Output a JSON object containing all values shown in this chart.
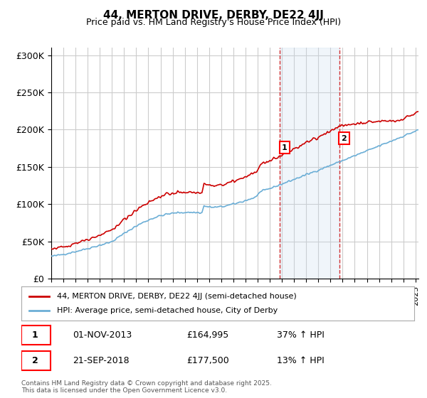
{
  "title_line1": "44, MERTON DRIVE, DERBY, DE22 4JJ",
  "title_line2": "Price paid vs. HM Land Registry's House Price Index (HPI)",
  "ylabel": "",
  "xlabel": "",
  "ylim": [
    0,
    310000
  ],
  "yticks": [
    0,
    50000,
    100000,
    150000,
    200000,
    250000,
    300000
  ],
  "ytick_labels": [
    "£0",
    "£50K",
    "£100K",
    "£150K",
    "£200K",
    "£250K",
    "£300K"
  ],
  "hpi_color": "#6baed6",
  "price_color": "#cc0000",
  "vline_color": "#cc0000",
  "shade_color": "#c6dbef",
  "background_color": "#ffffff",
  "grid_color": "#cccccc",
  "event1_date": "2013-11-01",
  "event1_label": "1",
  "event1_price": 164995,
  "event1_text": "01-NOV-2013    £164,995    37% ↑ HPI",
  "event2_date": "2018-09-21",
  "event2_label": "2",
  "event2_price": 177500,
  "event2_text": "21-SEP-2018    £177,500    13% ↑ HPI",
  "legend_line1": "44, MERTON DRIVE, DERBY, DE22 4JJ (semi-detached house)",
  "legend_line2": "HPI: Average price, semi-detached house, City of Derby",
  "footer": "Contains HM Land Registry data © Crown copyright and database right 2025.\nThis data is licensed under the Open Government Licence v3.0."
}
